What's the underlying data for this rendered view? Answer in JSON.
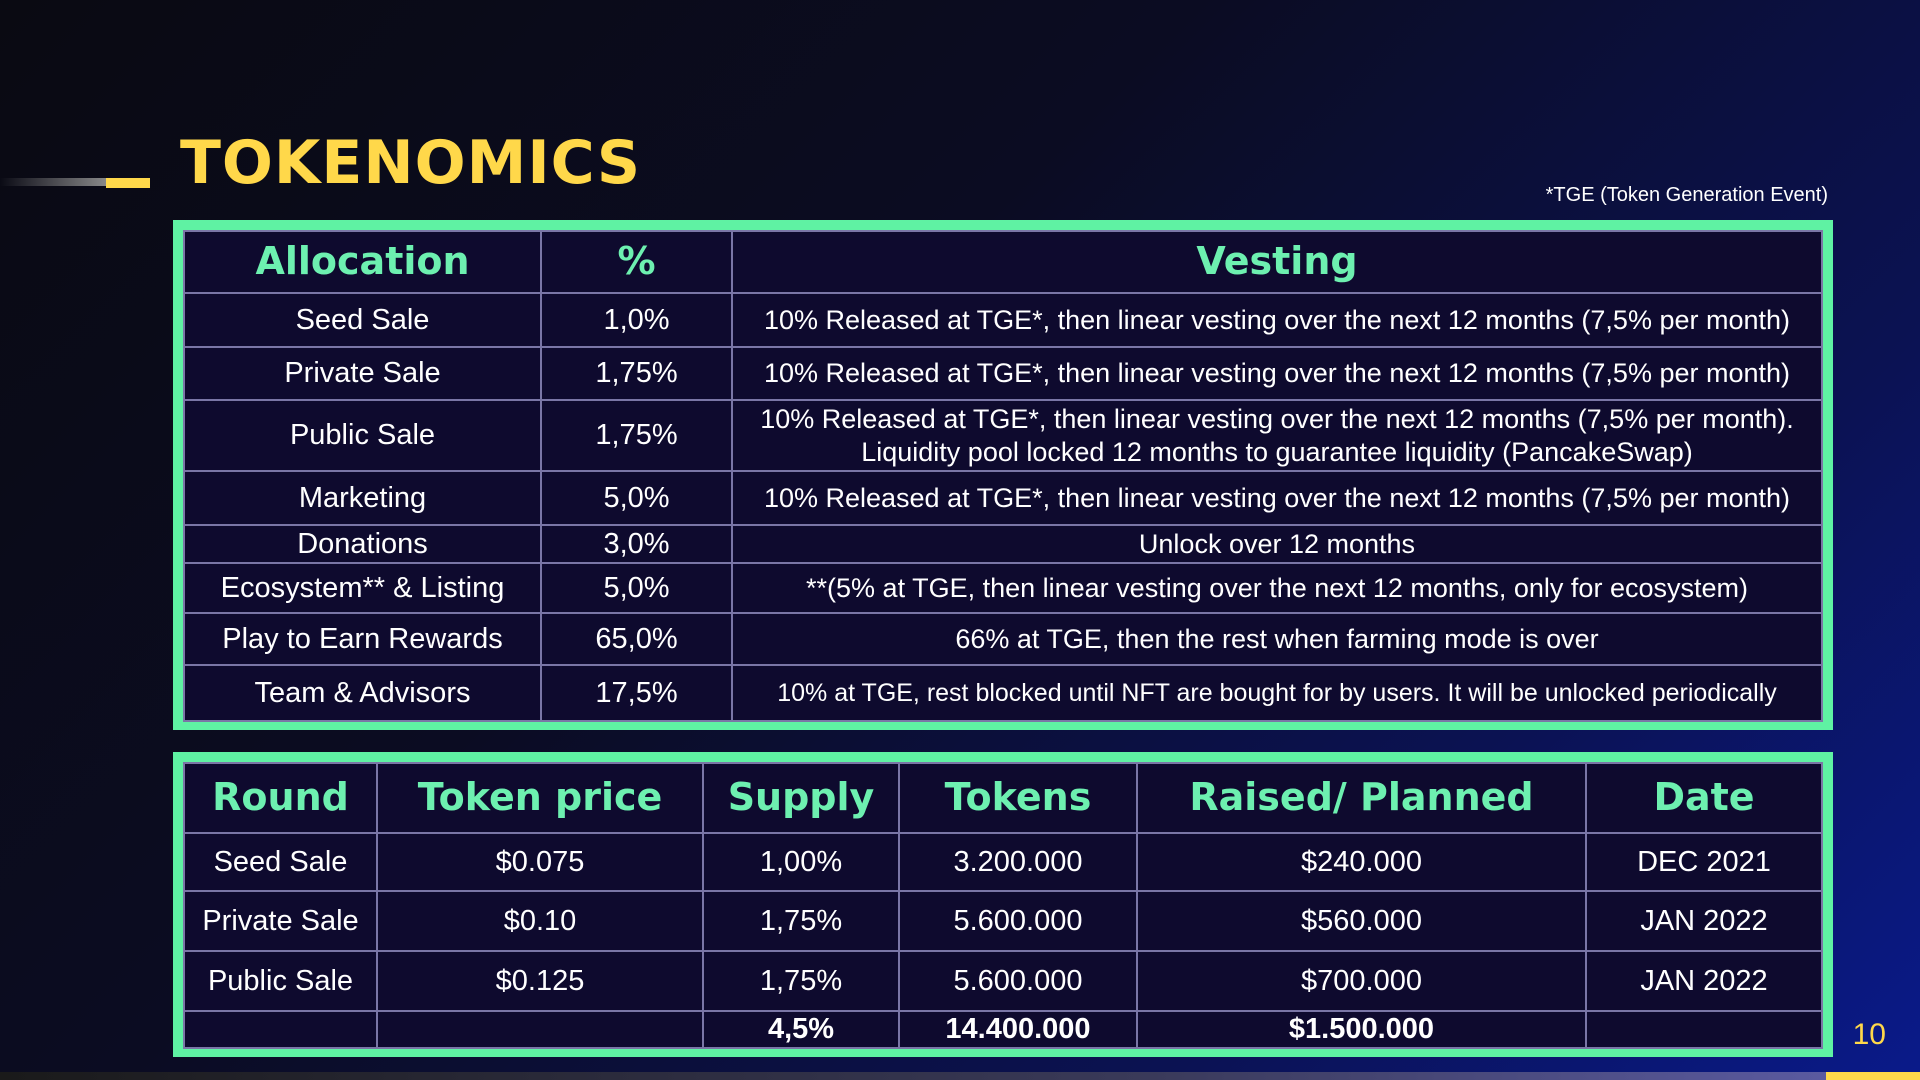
{
  "title": "TOKENOMICS",
  "footnote": "*TGE (Token Generation Event)",
  "page_number": "10",
  "allocation_table": {
    "headers": [
      "Allocation",
      "%",
      "Vesting"
    ],
    "rows": [
      {
        "allocation": "Seed Sale",
        "percent": "1,0%",
        "vesting": "10% Released at TGE*, then linear vesting over the next 12 months (7,5% per month)"
      },
      {
        "allocation": "Private Sale",
        "percent": "1,75%",
        "vesting": "10% Released at TGE*, then linear vesting over the next 12 months (7,5% per month)"
      },
      {
        "allocation": "Public Sale",
        "percent": "1,75%",
        "vesting": "10% Released at TGE*, then linear vesting over the next 12 months (7,5% per month).",
        "vesting2": "Liquidity pool locked 12 months to guarantee liquidity (PancakeSwap)"
      },
      {
        "allocation": "Marketing",
        "percent": "5,0%",
        "vesting": "10% Released at TGE*, then linear vesting over the next 12 months (7,5% per month)"
      },
      {
        "allocation": "Donations",
        "percent": "3,0%",
        "vesting": "Unlock over 12 months"
      },
      {
        "allocation": "Ecosystem** & Listing",
        "percent": "5,0%",
        "vesting": "**(5% at TGE, then linear vesting over the next 12 months, only for ecosystem)"
      },
      {
        "allocation": "Play to Earn Rewards",
        "percent": "65,0%",
        "vesting": "66% at TGE, then the rest when farming mode is over"
      },
      {
        "allocation": "Team & Advisors",
        "percent": "17,5%",
        "vesting": "10% at TGE, rest blocked until NFT are bought for by users. It will be unlocked periodically"
      }
    ]
  },
  "rounds_table": {
    "headers": [
      "Round",
      "Token price",
      "Supply",
      "Tokens",
      "Raised/ Planned",
      "Date"
    ],
    "rows": [
      {
        "round": "Seed Sale",
        "price": "$0.075",
        "supply": "1,00%",
        "tokens": "3.200.000",
        "raised": "$240.000",
        "date": "DEC 2021"
      },
      {
        "round": "Private Sale",
        "price": "$0.10",
        "supply": "1,75%",
        "tokens": "5.600.000",
        "raised": "$560.000",
        "date": "JAN 2022"
      },
      {
        "round": "Public Sale",
        "price": "$0.125",
        "supply": "1,75%",
        "tokens": "5.600.000",
        "raised": "$700.000",
        "date": "JAN 2022"
      }
    ],
    "totals": {
      "supply": "4,5%",
      "tokens": "14.400.000",
      "raised": "$1.500.000"
    }
  }
}
